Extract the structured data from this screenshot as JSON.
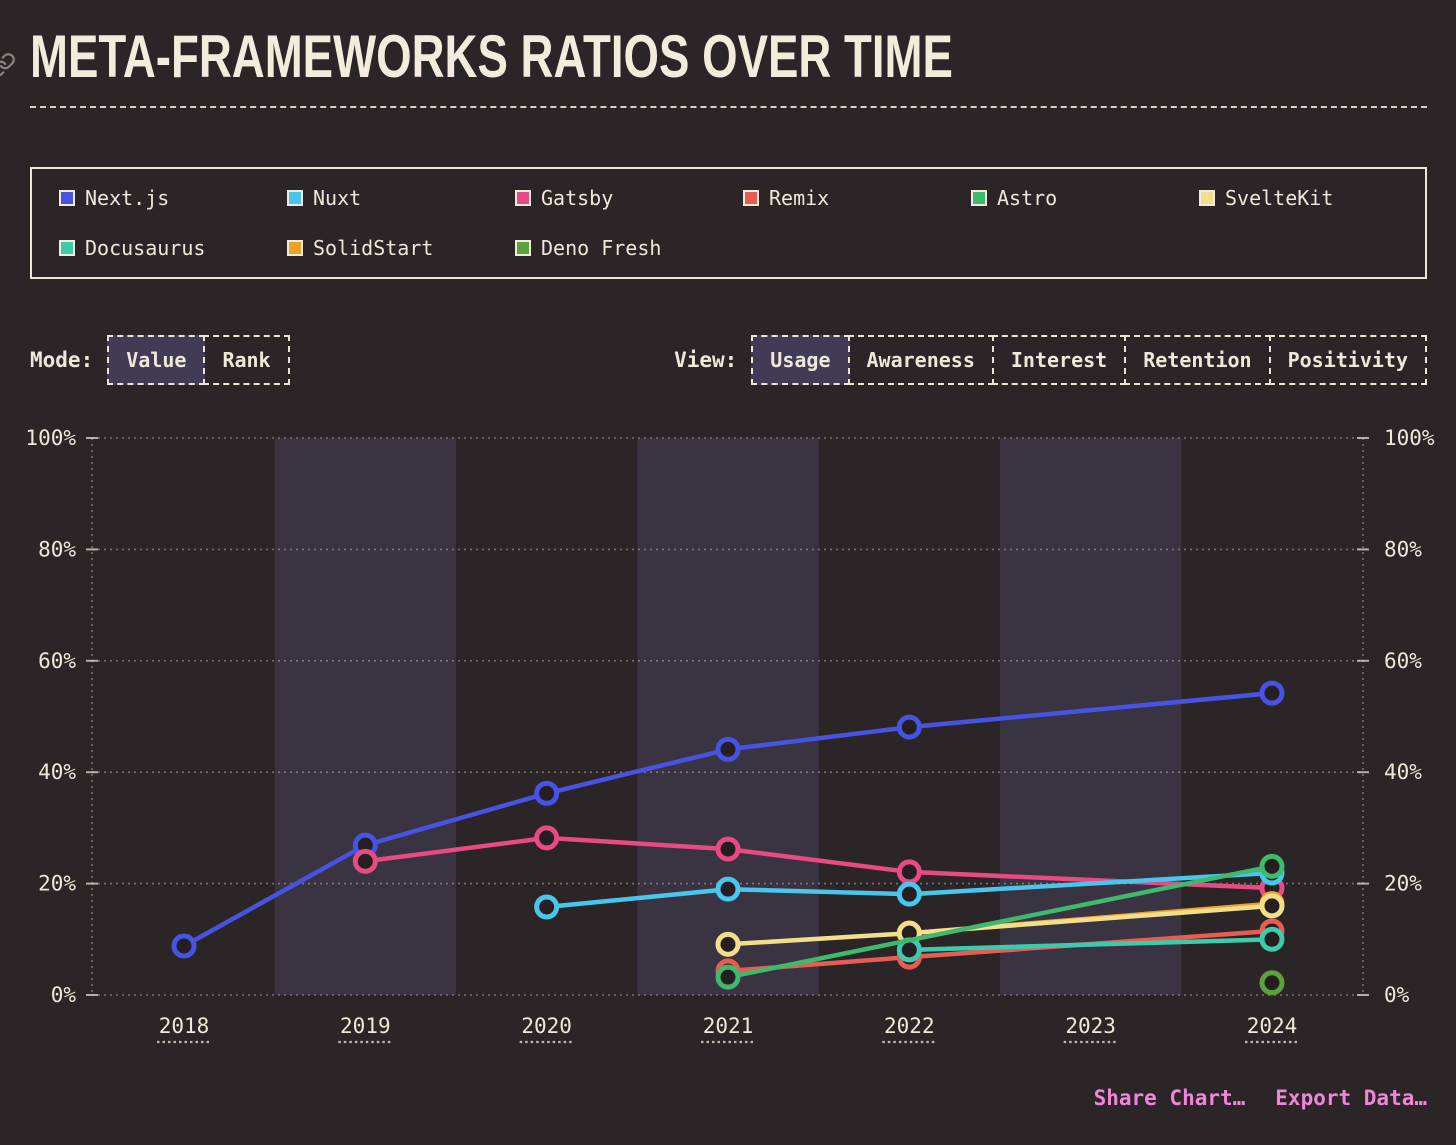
{
  "title": "META-FRAMEWORKS RATIOS OVER TIME",
  "legend": {
    "order": [
      "Next.js",
      "Nuxt",
      "Gatsby",
      "Remix",
      "Astro",
      "SvelteKit",
      "Docusaurus",
      "SolidStart",
      "Deno Fresh"
    ]
  },
  "controls": {
    "mode": {
      "label": "Mode:",
      "options": [
        {
          "label": "Value",
          "selected": true
        },
        {
          "label": "Rank",
          "selected": false
        }
      ]
    },
    "view": {
      "label": "View:",
      "options": [
        {
          "label": "Usage",
          "selected": true
        },
        {
          "label": "Awareness",
          "selected": false
        },
        {
          "label": "Interest",
          "selected": false
        },
        {
          "label": "Retention",
          "selected": false
        },
        {
          "label": "Positivity",
          "selected": false
        }
      ]
    }
  },
  "footer": {
    "share_label": "Share Chart…",
    "export_label": "Export Data…"
  },
  "colors": {
    "background": "#2b2527",
    "band": "#3a3442",
    "grid": "#d8d1c2",
    "text": "#efe8d8",
    "point_fill": "#251f22",
    "link_pink": "#ef86d7"
  },
  "chart_data": {
    "type": "line",
    "title": "Usage ratio (%) of JavaScript meta-frameworks per survey year",
    "x": [
      2018,
      2019,
      2020,
      2021,
      2022,
      2023,
      2024
    ],
    "x_tick_labels": [
      "2018",
      "2019",
      "2020",
      "2021",
      "2022",
      "2023",
      "2024"
    ],
    "ylim": [
      0,
      100
    ],
    "y_ticks": [
      0,
      20,
      40,
      60,
      80,
      100
    ],
    "y_tick_suffix": "%",
    "grid": "dotted-horizontal, dual y-axis labels left and right",
    "shaded_year_bands": [
      2019,
      2021,
      2023
    ],
    "series": [
      {
        "name": "Next.js",
        "color": "#4753e3",
        "points": [
          [
            2018,
            8.8
          ],
          [
            2019,
            26.9
          ],
          [
            2020,
            36.2
          ],
          [
            2021,
            44.1
          ],
          [
            2022,
            48.1
          ],
          [
            2024,
            54.2
          ]
        ]
      },
      {
        "name": "Gatsby",
        "color": "#e84a84",
        "points": [
          [
            2019,
            24.0
          ],
          [
            2020,
            28.2
          ],
          [
            2021,
            26.2
          ],
          [
            2022,
            22.1
          ],
          [
            2024,
            19.2
          ]
        ]
      },
      {
        "name": "Nuxt",
        "color": "#48c6ec",
        "points": [
          [
            2020,
            15.8
          ],
          [
            2021,
            19.0
          ],
          [
            2022,
            18.1
          ],
          [
            2024,
            21.9
          ]
        ]
      },
      {
        "name": "SolidStart",
        "color": "#f0a228",
        "points": [
          [
            2022,
            11.1
          ],
          [
            2024,
            16.4
          ]
        ]
      },
      {
        "name": "Remix",
        "color": "#e85d52",
        "points": [
          [
            2021,
            4.3
          ],
          [
            2022,
            6.8
          ],
          [
            2024,
            11.5
          ]
        ]
      },
      {
        "name": "SvelteKit",
        "color": "#f3df8b",
        "points": [
          [
            2021,
            9.1
          ],
          [
            2022,
            11.1
          ],
          [
            2024,
            16.0
          ]
        ]
      },
      {
        "name": "Docusaurus",
        "color": "#3cccad",
        "points": [
          [
            2022,
            8.1
          ],
          [
            2024,
            10.0
          ]
        ]
      },
      {
        "name": "Astro",
        "color": "#3eb96d",
        "points": [
          [
            2021,
            3.2
          ],
          [
            2024,
            23.1
          ]
        ]
      },
      {
        "name": "Deno Fresh",
        "color": "#5da23f",
        "points": [
          [
            2024,
            2.2
          ]
        ]
      }
    ]
  }
}
